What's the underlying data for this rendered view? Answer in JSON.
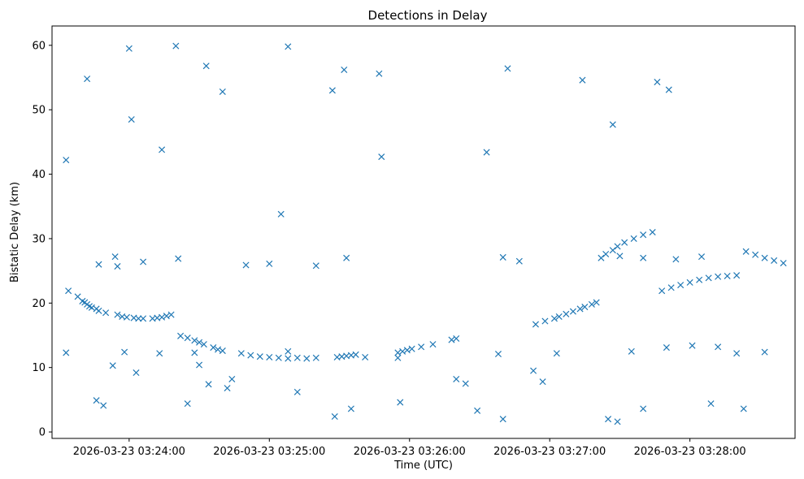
{
  "chart_data": {
    "type": "scatter",
    "title": "Detections in Delay",
    "xlabel": "Time (UTC)",
    "ylabel": "Bistatic Delay (km)",
    "x_ticks": [
      "2026-03-23 03:24:00",
      "2026-03-23 03:25:00",
      "2026-03-23 03:26:00",
      "2026-03-23 03:27:00",
      "2026-03-23 03:28:00"
    ],
    "xlim": [
      "2026-03-23 03:23:27",
      "2026-03-23 03:28:45"
    ],
    "y_ticks": [
      0,
      10,
      20,
      30,
      40,
      50,
      60
    ],
    "ylim": [
      -1,
      63
    ],
    "grid": false,
    "marker": "x",
    "color": "#1f77b4",
    "series": [
      {
        "x": [
          "2026-03-23 03:23:33",
          "2026-03-23 03:23:42",
          "2026-03-23 03:24:00",
          "2026-03-23 03:24:01",
          "2026-03-23 03:24:14",
          "2026-03-23 03:24:20",
          "2026-03-23 03:24:33",
          "2026-03-23 03:24:40",
          "2026-03-23 03:25:08",
          "2026-03-23 03:25:05",
          "2026-03-23 03:25:27",
          "2026-03-23 03:25:32",
          "2026-03-23 03:25:47",
          "2026-03-23 03:25:48",
          "2026-03-23 03:26:42",
          "2026-03-23 03:26:33",
          "2026-03-23 03:27:14",
          "2026-03-23 03:27:27",
          "2026-03-23 03:27:46",
          "2026-03-23 03:27:51",
          "2026-03-23 03:23:33",
          "2026-03-23 03:23:58",
          "2026-03-23 03:24:13",
          "2026-03-23 03:24:28",
          "2026-03-23 03:25:08",
          "2026-03-23 03:25:41",
          "2026-03-23 03:25:55",
          "2026-03-23 03:26:38",
          "2026-03-23 03:27:03",
          "2026-03-23 03:27:35",
          "2026-03-23 03:27:50",
          "2026-03-23 03:28:01",
          "2026-03-23 03:28:12",
          "2026-03-23 03:28:32",
          "2026-03-23 03:28:20",
          "2026-03-23 03:23:47",
          "2026-03-23 03:23:54",
          "2026-03-23 03:23:55",
          "2026-03-23 03:24:06",
          "2026-03-23 03:24:21",
          "2026-03-23 03:24:50",
          "2026-03-23 03:25:00",
          "2026-03-23 03:25:20",
          "2026-03-23 03:25:33",
          "2026-03-23 03:26:40",
          "2026-03-23 03:26:47",
          "2026-03-23 03:27:30",
          "2026-03-23 03:27:40",
          "2026-03-23 03:27:54",
          "2026-03-23 03:28:05",
          "2026-03-23 03:23:46",
          "2026-03-23 03:23:49",
          "2026-03-23 03:23:53",
          "2026-03-23 03:24:03",
          "2026-03-23 03:24:25",
          "2026-03-23 03:24:30",
          "2026-03-23 03:24:34",
          "2026-03-23 03:24:42",
          "2026-03-23 03:24:44",
          "2026-03-23 03:25:12",
          "2026-03-23 03:25:28",
          "2026-03-23 03:25:35",
          "2026-03-23 03:25:56",
          "2026-03-23 03:26:20",
          "2026-03-23 03:26:24",
          "2026-03-23 03:26:29",
          "2026-03-23 03:26:40",
          "2026-03-23 03:26:53",
          "2026-03-23 03:26:57",
          "2026-03-23 03:27:25",
          "2026-03-23 03:27:29",
          "2026-03-23 03:27:40",
          "2026-03-23 03:28:09",
          "2026-03-23 03:28:23",
          "2026-03-23 03:23:34",
          "2026-03-23 03:23:38",
          "2026-03-23 03:23:40",
          "2026-03-23 03:23:41",
          "2026-03-23 03:23:42",
          "2026-03-23 03:23:43",
          "2026-03-23 03:23:44",
          "2026-03-23 03:23:46",
          "2026-03-23 03:23:47",
          "2026-03-23 03:23:50",
          "2026-03-23 03:23:55",
          "2026-03-23 03:23:57",
          "2026-03-23 03:23:59",
          "2026-03-23 03:24:02",
          "2026-03-23 03:24:04",
          "2026-03-23 03:24:06",
          "2026-03-23 03:24:10",
          "2026-03-23 03:24:12",
          "2026-03-23 03:24:14",
          "2026-03-23 03:24:16",
          "2026-03-23 03:24:18",
          "2026-03-23 03:24:22",
          "2026-03-23 03:24:25",
          "2026-03-23 03:24:28",
          "2026-03-23 03:24:30",
          "2026-03-23 03:24:32",
          "2026-03-23 03:24:36",
          "2026-03-23 03:24:38",
          "2026-03-23 03:24:40",
          "2026-03-23 03:24:48",
          "2026-03-23 03:24:52",
          "2026-03-23 03:24:56",
          "2026-03-23 03:25:00",
          "2026-03-23 03:25:04",
          "2026-03-23 03:25:08",
          "2026-03-23 03:25:12",
          "2026-03-23 03:25:16",
          "2026-03-23 03:25:20",
          "2026-03-23 03:25:29",
          "2026-03-23 03:25:31",
          "2026-03-23 03:25:33",
          "2026-03-23 03:25:35",
          "2026-03-23 03:25:37",
          "2026-03-23 03:25:55",
          "2026-03-23 03:25:57",
          "2026-03-23 03:25:59",
          "2026-03-23 03:26:01",
          "2026-03-23 03:26:05",
          "2026-03-23 03:26:10",
          "2026-03-23 03:26:18",
          "2026-03-23 03:26:20",
          "2026-03-23 03:26:54",
          "2026-03-23 03:26:58",
          "2026-03-23 03:27:02",
          "2026-03-23 03:27:04",
          "2026-03-23 03:27:07",
          "2026-03-23 03:27:10",
          "2026-03-23 03:27:13",
          "2026-03-23 03:27:15",
          "2026-03-23 03:27:18",
          "2026-03-23 03:27:20",
          "2026-03-23 03:27:22",
          "2026-03-23 03:27:24",
          "2026-03-23 03:27:27",
          "2026-03-23 03:27:29",
          "2026-03-23 03:27:32",
          "2026-03-23 03:27:36",
          "2026-03-23 03:27:40",
          "2026-03-23 03:27:44",
          "2026-03-23 03:27:48",
          "2026-03-23 03:27:52",
          "2026-03-23 03:27:56",
          "2026-03-23 03:28:00",
          "2026-03-23 03:28:04",
          "2026-03-23 03:28:08",
          "2026-03-23 03:28:12",
          "2026-03-23 03:28:16",
          "2026-03-23 03:28:20",
          "2026-03-23 03:28:24",
          "2026-03-23 03:28:28",
          "2026-03-23 03:28:32",
          "2026-03-23 03:28:36",
          "2026-03-23 03:28:40"
        ],
        "y": [
          42.2,
          54.8,
          59.5,
          48.5,
          43.8,
          59.9,
          56.8,
          52.8,
          59.8,
          33.8,
          53.0,
          56.2,
          55.6,
          42.7,
          56.4,
          43.4,
          54.6,
          47.7,
          54.3,
          53.1,
          12.3,
          12.4,
          12.2,
          12.3,
          12.5,
          11.6,
          11.5,
          12.1,
          12.2,
          12.5,
          13.1,
          13.4,
          13.2,
          12.4,
          12.2,
          26.0,
          27.2,
          25.7,
          26.4,
          26.9,
          25.9,
          26.1,
          25.8,
          27.0,
          27.1,
          26.5,
          27.3,
          27.0,
          26.8,
          27.2,
          4.9,
          4.1,
          10.3,
          9.2,
          4.4,
          10.4,
          7.4,
          6.8,
          8.2,
          6.2,
          2.4,
          3.6,
          4.6,
          8.2,
          7.5,
          3.3,
          2.0,
          9.5,
          7.8,
          2.0,
          1.6,
          3.6,
          4.4,
          3.6,
          21.9,
          21.0,
          20.3,
          20.1,
          19.8,
          19.5,
          19.3,
          19.1,
          18.8,
          18.5,
          18.2,
          17.9,
          17.8,
          17.7,
          17.6,
          17.6,
          17.6,
          17.7,
          17.8,
          18.0,
          18.2,
          14.9,
          14.6,
          14.2,
          13.9,
          13.6,
          13.1,
          12.8,
          12.6,
          12.2,
          11.9,
          11.7,
          11.6,
          11.5,
          11.4,
          11.5,
          11.4,
          11.5,
          11.6,
          11.7,
          11.8,
          11.9,
          12.0,
          12.3,
          12.5,
          12.7,
          12.9,
          13.2,
          13.6,
          14.3,
          14.5,
          16.7,
          17.2,
          17.6,
          17.9,
          18.3,
          18.7,
          19.1,
          19.4,
          19.8,
          20.1,
          27.0,
          27.6,
          28.2,
          28.8,
          29.4,
          30.0,
          30.6,
          31.0,
          21.9,
          22.4,
          22.8,
          23.2,
          23.6,
          23.9,
          24.1,
          24.2,
          24.3,
          28.0,
          27.5,
          27.0,
          26.6,
          26.2
        ]
      }
    ]
  }
}
